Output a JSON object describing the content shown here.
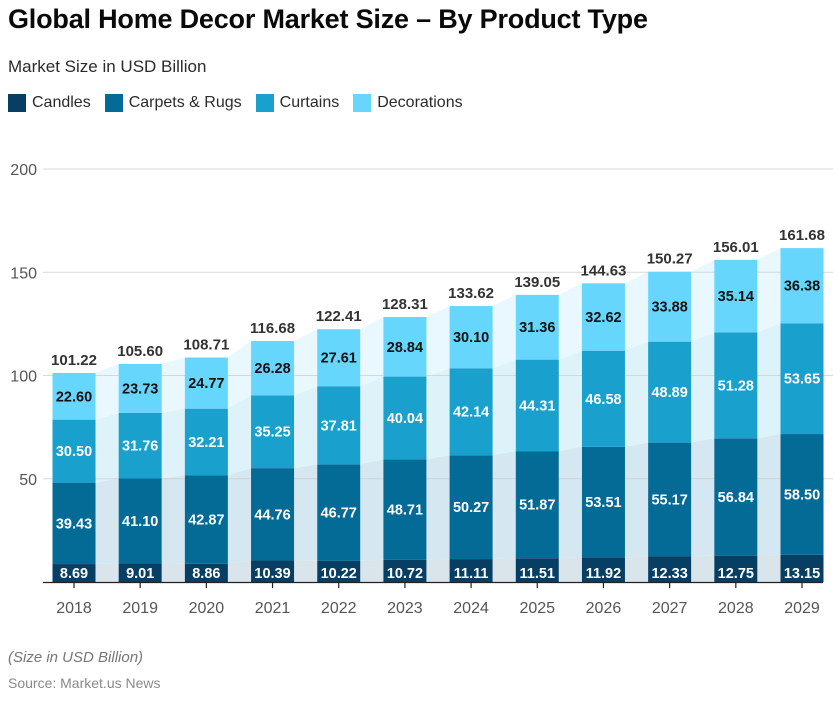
{
  "title": "Global Home Decor Market Size – By Product Type",
  "subtitle": "Market Size in USD Billion",
  "footnote": "(Size in USD Billion)",
  "source": "Source: Market.us News",
  "legend": [
    {
      "label": "Candles",
      "color": "#073f64"
    },
    {
      "label": "Carpets & Rugs",
      "color": "#046a96"
    },
    {
      "label": "Curtains",
      "color": "#19a0cc"
    },
    {
      "label": "Decorations",
      "color": "#67d6fc"
    }
  ],
  "chart_data": {
    "type": "bar",
    "stacked": true,
    "title": "Global Home Decor Market Size – By Product Type",
    "subtitle": "Market Size in USD Billion",
    "xlabel": "",
    "ylabel": "",
    "ylim": [
      0,
      200
    ],
    "yticks": [
      50,
      100,
      150,
      200
    ],
    "grid": true,
    "legend_position": "top-left",
    "categories": [
      "2018",
      "2019",
      "2020",
      "2021",
      "2022",
      "2023",
      "2024",
      "2025",
      "2026",
      "2027",
      "2028",
      "2029"
    ],
    "series": [
      {
        "name": "Candles",
        "color": "#073f64",
        "label_color": "#ffffff",
        "connector_color": "#d9e4eb",
        "values": [
          8.69,
          9.01,
          8.86,
          10.39,
          10.22,
          10.72,
          11.11,
          11.51,
          11.92,
          12.33,
          12.75,
          13.15
        ]
      },
      {
        "name": "Carpets & Rugs",
        "color": "#046a96",
        "label_color": "#ffffff",
        "connector_color": "#d5e7f0",
        "values": [
          39.43,
          41.1,
          42.87,
          44.76,
          46.77,
          48.71,
          50.27,
          51.87,
          53.51,
          55.17,
          56.84,
          58.5
        ]
      },
      {
        "name": "Curtains",
        "color": "#19a0cc",
        "label_color": "#ffffff",
        "connector_color": "#def2fa",
        "values": [
          30.5,
          31.76,
          32.21,
          35.25,
          37.81,
          40.04,
          42.14,
          44.31,
          46.58,
          48.89,
          51.28,
          53.65
        ]
      },
      {
        "name": "Decorations",
        "color": "#67d6fc",
        "label_color": "#111111",
        "connector_color": "#e8f8fe",
        "values": [
          22.6,
          23.73,
          24.77,
          26.28,
          27.61,
          28.84,
          30.1,
          31.36,
          32.62,
          33.88,
          35.14,
          36.38
        ]
      }
    ],
    "totals": [
      "101.22",
      "105.60",
      "108.71",
      "116.68",
      "122.41",
      "128.31",
      "133.62",
      "139.05",
      "144.63",
      "150.27",
      "156.01",
      "161.68"
    ],
    "value_labels": [
      [
        "8.69",
        "9.01",
        "8.86",
        "10.39",
        "10.22",
        "10.72",
        "11.11",
        "11.51",
        "11.92",
        "12.33",
        "12.75",
        "13.15"
      ],
      [
        "39.43",
        "41.10",
        "42.87",
        "44.76",
        "46.77",
        "48.71",
        "50.27",
        "51.87",
        "53.51",
        "55.17",
        "56.84",
        "58.50"
      ],
      [
        "30.50",
        "31.76",
        "32.21",
        "35.25",
        "37.81",
        "40.04",
        "42.14",
        "44.31",
        "46.58",
        "48.89",
        "51.28",
        "53.65"
      ],
      [
        "22.60",
        "23.73",
        "24.77",
        "26.28",
        "27.61",
        "28.84",
        "30.10",
        "31.36",
        "32.62",
        "33.88",
        "35.14",
        "36.38"
      ]
    ]
  }
}
